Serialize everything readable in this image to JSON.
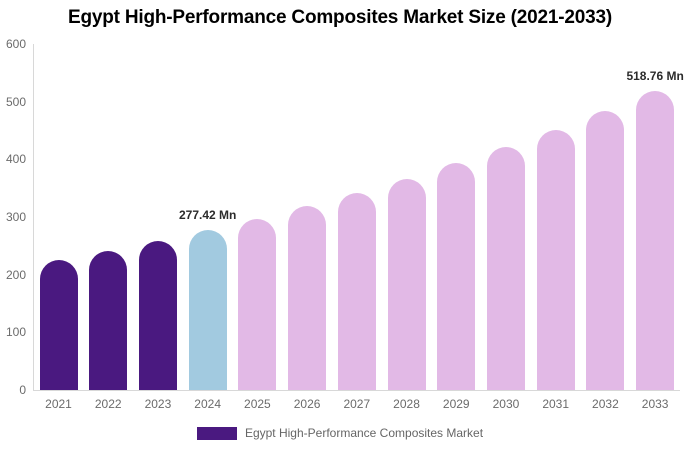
{
  "chart": {
    "title": "Egypt High-Performance Composites Market Size (2021-2033)"
  },
  "chart_data": {
    "type": "bar",
    "title": "Egypt High-Performance Composites Market Size (2021-2033)",
    "categories": [
      "2021",
      "2022",
      "2023",
      "2024",
      "2025",
      "2026",
      "2027",
      "2028",
      "2029",
      "2030",
      "2031",
      "2032",
      "2033"
    ],
    "series": [
      {
        "name": "Egypt High-Performance Composites Market",
        "values": [
          225.2,
          241.5,
          258.8,
          277.42,
          297.4,
          318.9,
          341.9,
          366.5,
          392.9,
          421.2,
          451.6,
          484.1,
          518.76
        ]
      }
    ],
    "unit": "Mn",
    "ylim": [
      0,
      600
    ],
    "yticks": [
      0,
      100,
      200,
      300,
      400,
      500,
      600
    ],
    "grid": false,
    "legend_position": "bottom",
    "annotations": [
      {
        "category": "2024",
        "text": "277.42 Mn"
      },
      {
        "category": "2033",
        "text": "518.76 Mn"
      }
    ],
    "bar_colors": [
      "#4a1980",
      "#4a1980",
      "#4a1980",
      "#a2cae0",
      "#e2b9e6",
      "#e2b9e6",
      "#e2b9e6",
      "#e2b9e6",
      "#e2b9e6",
      "#e2b9e6",
      "#e2b9e6",
      "#e2b9e6",
      "#e2b9e6"
    ]
  },
  "legend": {
    "label": "Egypt High-Performance Composites Market",
    "swatch_color": "#4a1980"
  },
  "colors": {
    "purple": "#4a1980",
    "blue": "#a2cae0",
    "pink": "#e2b9e6",
    "axis_line": "#d8d8d8",
    "tick_text": "#6b6b6b",
    "data_label_text": "#2b2b2b",
    "title_text": "#000000"
  }
}
